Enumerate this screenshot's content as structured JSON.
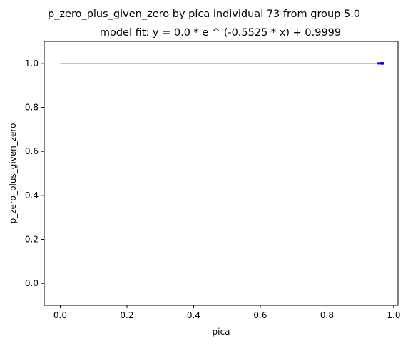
{
  "chart_data": {
    "type": "scatter",
    "title": "p_zero_plus_given_zero by pica individual 73 from group 5.0",
    "subtitle": "model fit: y = 0.0 * e ^ (-0.5525 * x) + 0.9999",
    "xlabel": "pica",
    "ylabel": "p_zero_plus_given_zero",
    "xlim": [
      -0.048,
      1.013
    ],
    "ylim": [
      -0.1,
      1.1
    ],
    "xticks": [
      0.0,
      0.2,
      0.4,
      0.6,
      0.8,
      1.0
    ],
    "xtick_labels": [
      "0.0",
      "0.2",
      "0.4",
      "0.6",
      "0.8",
      "1.0"
    ],
    "yticks": [
      0.0,
      0.2,
      0.4,
      0.6,
      0.8,
      1.0
    ],
    "ytick_labels": [
      "0.0",
      "0.2",
      "0.4",
      "0.6",
      "0.8",
      "1.0"
    ],
    "grid": false,
    "legend": "none",
    "series": [
      {
        "kind": "line",
        "color": "#a0a0a0",
        "x": [
          0.0,
          0.2,
          0.4,
          0.6,
          0.8,
          0.97
        ],
        "y": [
          0.9999,
          0.9999,
          0.9999,
          0.9999,
          0.9999,
          0.9999
        ]
      },
      {
        "kind": "points",
        "color": "#0000cc",
        "x": [
          0.955,
          0.962,
          0.968
        ],
        "y": [
          1.0,
          1.0,
          1.0
        ]
      }
    ]
  }
}
